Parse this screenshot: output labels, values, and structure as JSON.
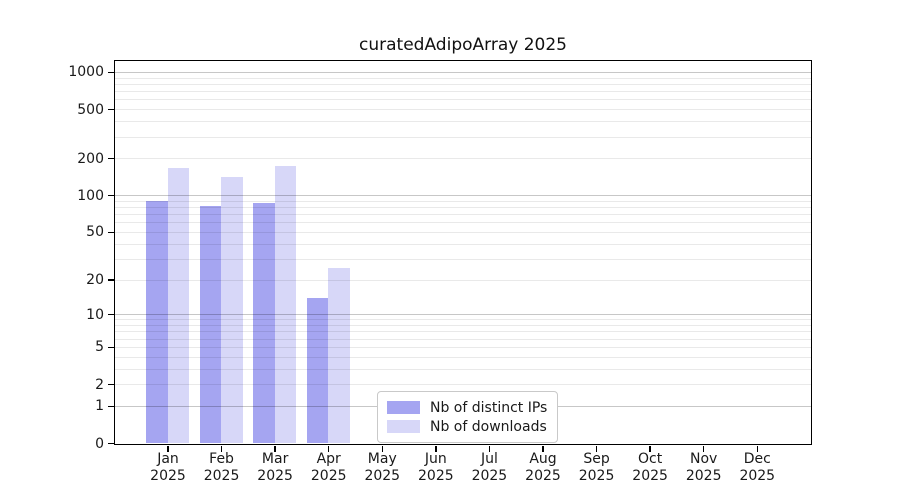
{
  "title": "curatedAdipoArray 2025",
  "chart_data": {
    "type": "bar",
    "title": "curatedAdipoArray 2025",
    "categories": [
      "Jan",
      "Feb",
      "Mar",
      "Apr",
      "May",
      "Jun",
      "Jul",
      "Aug",
      "Sep",
      "Oct",
      "Nov",
      "Dec"
    ],
    "year_label": "2025",
    "series": [
      {
        "name": "Nb of distinct IPs",
        "color": "#a5a5f1",
        "values": [
          90,
          82,
          86,
          14,
          0,
          0,
          0,
          0,
          0,
          0,
          0,
          0
        ]
      },
      {
        "name": "Nb of downloads",
        "color": "#d7d7f8",
        "values": [
          165,
          141,
          172,
          25,
          0,
          0,
          0,
          0,
          0,
          0,
          0,
          0
        ]
      }
    ],
    "y_ticks": [
      0,
      1,
      2,
      5,
      10,
      20,
      50,
      100,
      200,
      500,
      1000
    ],
    "y_scale": "log10(1+value)",
    "ylim": [
      0,
      1300
    ],
    "xlabel": "",
    "ylabel": "",
    "grid": "horizontal, major at powers of 10, minor at 2-9 per decade",
    "legend_position": "inside bottom-center"
  }
}
